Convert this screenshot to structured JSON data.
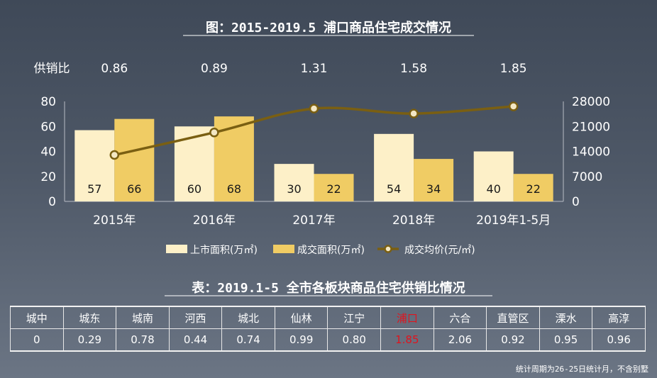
{
  "chart_data": {
    "type": "bar",
    "title": "图：2015-2019.5 浦口商品住宅成交情况",
    "ratio_label": "供销比",
    "ratios": [
      "0.86",
      "0.89",
      "1.31",
      "1.58",
      "1.85"
    ],
    "categories": [
      "2015年",
      "2016年",
      "2017年",
      "2018年",
      "2019年1-5月"
    ],
    "y_left": {
      "lim": [
        0,
        80
      ],
      "ticks": [
        "0",
        "20",
        "40",
        "60",
        "80"
      ]
    },
    "y_right": {
      "lim": [
        0,
        28000
      ],
      "ticks": [
        "0",
        "7000",
        "14000",
        "21000",
        "28000"
      ]
    },
    "series": [
      {
        "name": "上市面积(万㎡)",
        "type": "bar",
        "axis": "left",
        "color": "#fdf0c8",
        "values": [
          57,
          60,
          30,
          54,
          40
        ]
      },
      {
        "name": "成交面积(万㎡)",
        "type": "bar",
        "axis": "left",
        "color": "#f0cc64",
        "values": [
          66,
          68,
          22,
          34,
          22
        ]
      },
      {
        "name": "成交均价(元/㎡)",
        "type": "line",
        "axis": "right",
        "color": "#7a5f12",
        "values": [
          13000,
          19300,
          26000,
          24600,
          26600
        ]
      }
    ]
  },
  "table": {
    "title": "表：2019.1-5 全市各板块商品住宅供销比情况",
    "headers": [
      "城中",
      "城东",
      "城南",
      "河西",
      "城北",
      "仙林",
      "江宁",
      "浦口",
      "六合",
      "直管区",
      "溧水",
      "高淳"
    ],
    "values": [
      "0",
      "0.29",
      "0.78",
      "0.44",
      "0.74",
      "0.99",
      "0.80",
      "1.85",
      "2.06",
      "0.92",
      "0.95",
      "0.96"
    ],
    "highlight_color": "#e0141e"
  },
  "footnote": "统计周期为26-25日统计月，不含别墅"
}
